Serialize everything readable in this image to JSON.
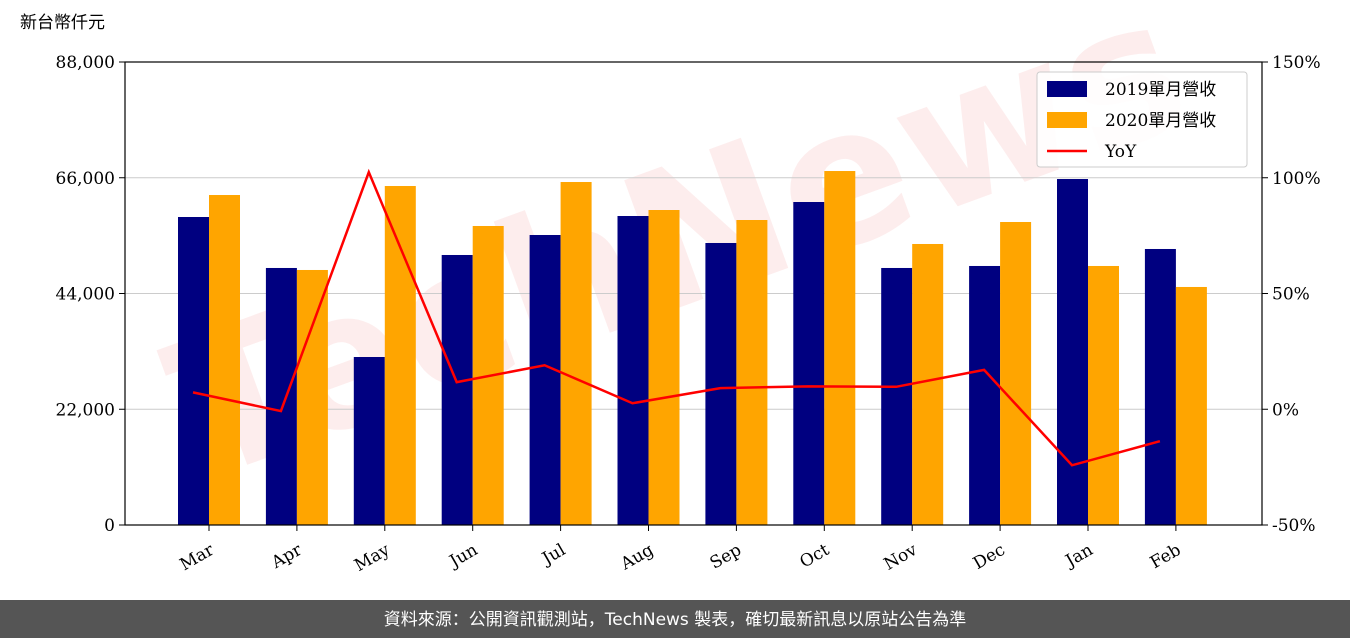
{
  "chart_data": {
    "type": "bar_line",
    "unit_label": "新台幣仟元",
    "watermark": "TechNews",
    "source": "資料來源：公開資訊觀測站，TechNews 製表，確切最新訊息以原站公告為準",
    "categories": [
      "Mar",
      "Apr",
      "May",
      "Jun",
      "Jul",
      "Aug",
      "Sep",
      "Oct",
      "Nov",
      "Dec",
      "Jan",
      "Feb"
    ],
    "series": [
      {
        "name": "2019單月營收",
        "color": "#000080",
        "type": "bar",
        "values": [
          58540,
          48850,
          31930,
          51320,
          55120,
          58730,
          53600,
          61390,
          48850,
          49230,
          65760,
          52460
        ]
      },
      {
        "name": "2020單月營收",
        "color": "#ffa500",
        "type": "bar",
        "values": [
          62720,
          48470,
          64430,
          56830,
          65190,
          59870,
          57970,
          67280,
          53410,
          57590,
          49230,
          45240
        ]
      },
      {
        "name": "YoY",
        "color": "#ff0000",
        "type": "line",
        "axis": "y2",
        "values": [
          7.3,
          -0.8,
          102.4,
          11.7,
          19.0,
          2.6,
          9.1,
          9.9,
          9.7,
          17.0,
          -24.2,
          -13.8
        ]
      }
    ],
    "ylim": [
      0,
      88000
    ],
    "yticks": [
      0,
      {
        "value": 22000,
        "label": "22,000"
      },
      {
        "value": 44000,
        "label": "44,000"
      },
      {
        "value": 66000,
        "label": "66,000"
      },
      {
        "value": 88000,
        "label": "88,000"
      }
    ],
    "y2lim": [
      -50,
      150
    ],
    "y2ticks": [
      {
        "value": -50,
        "label": "-50%"
      },
      {
        "value": 0,
        "label": "0%"
      },
      {
        "value": 50,
        "label": "50%"
      },
      {
        "value": 100,
        "label": "100%"
      },
      {
        "value": 150,
        "label": "150%"
      }
    ],
    "grid": true,
    "legend": "upper right"
  }
}
